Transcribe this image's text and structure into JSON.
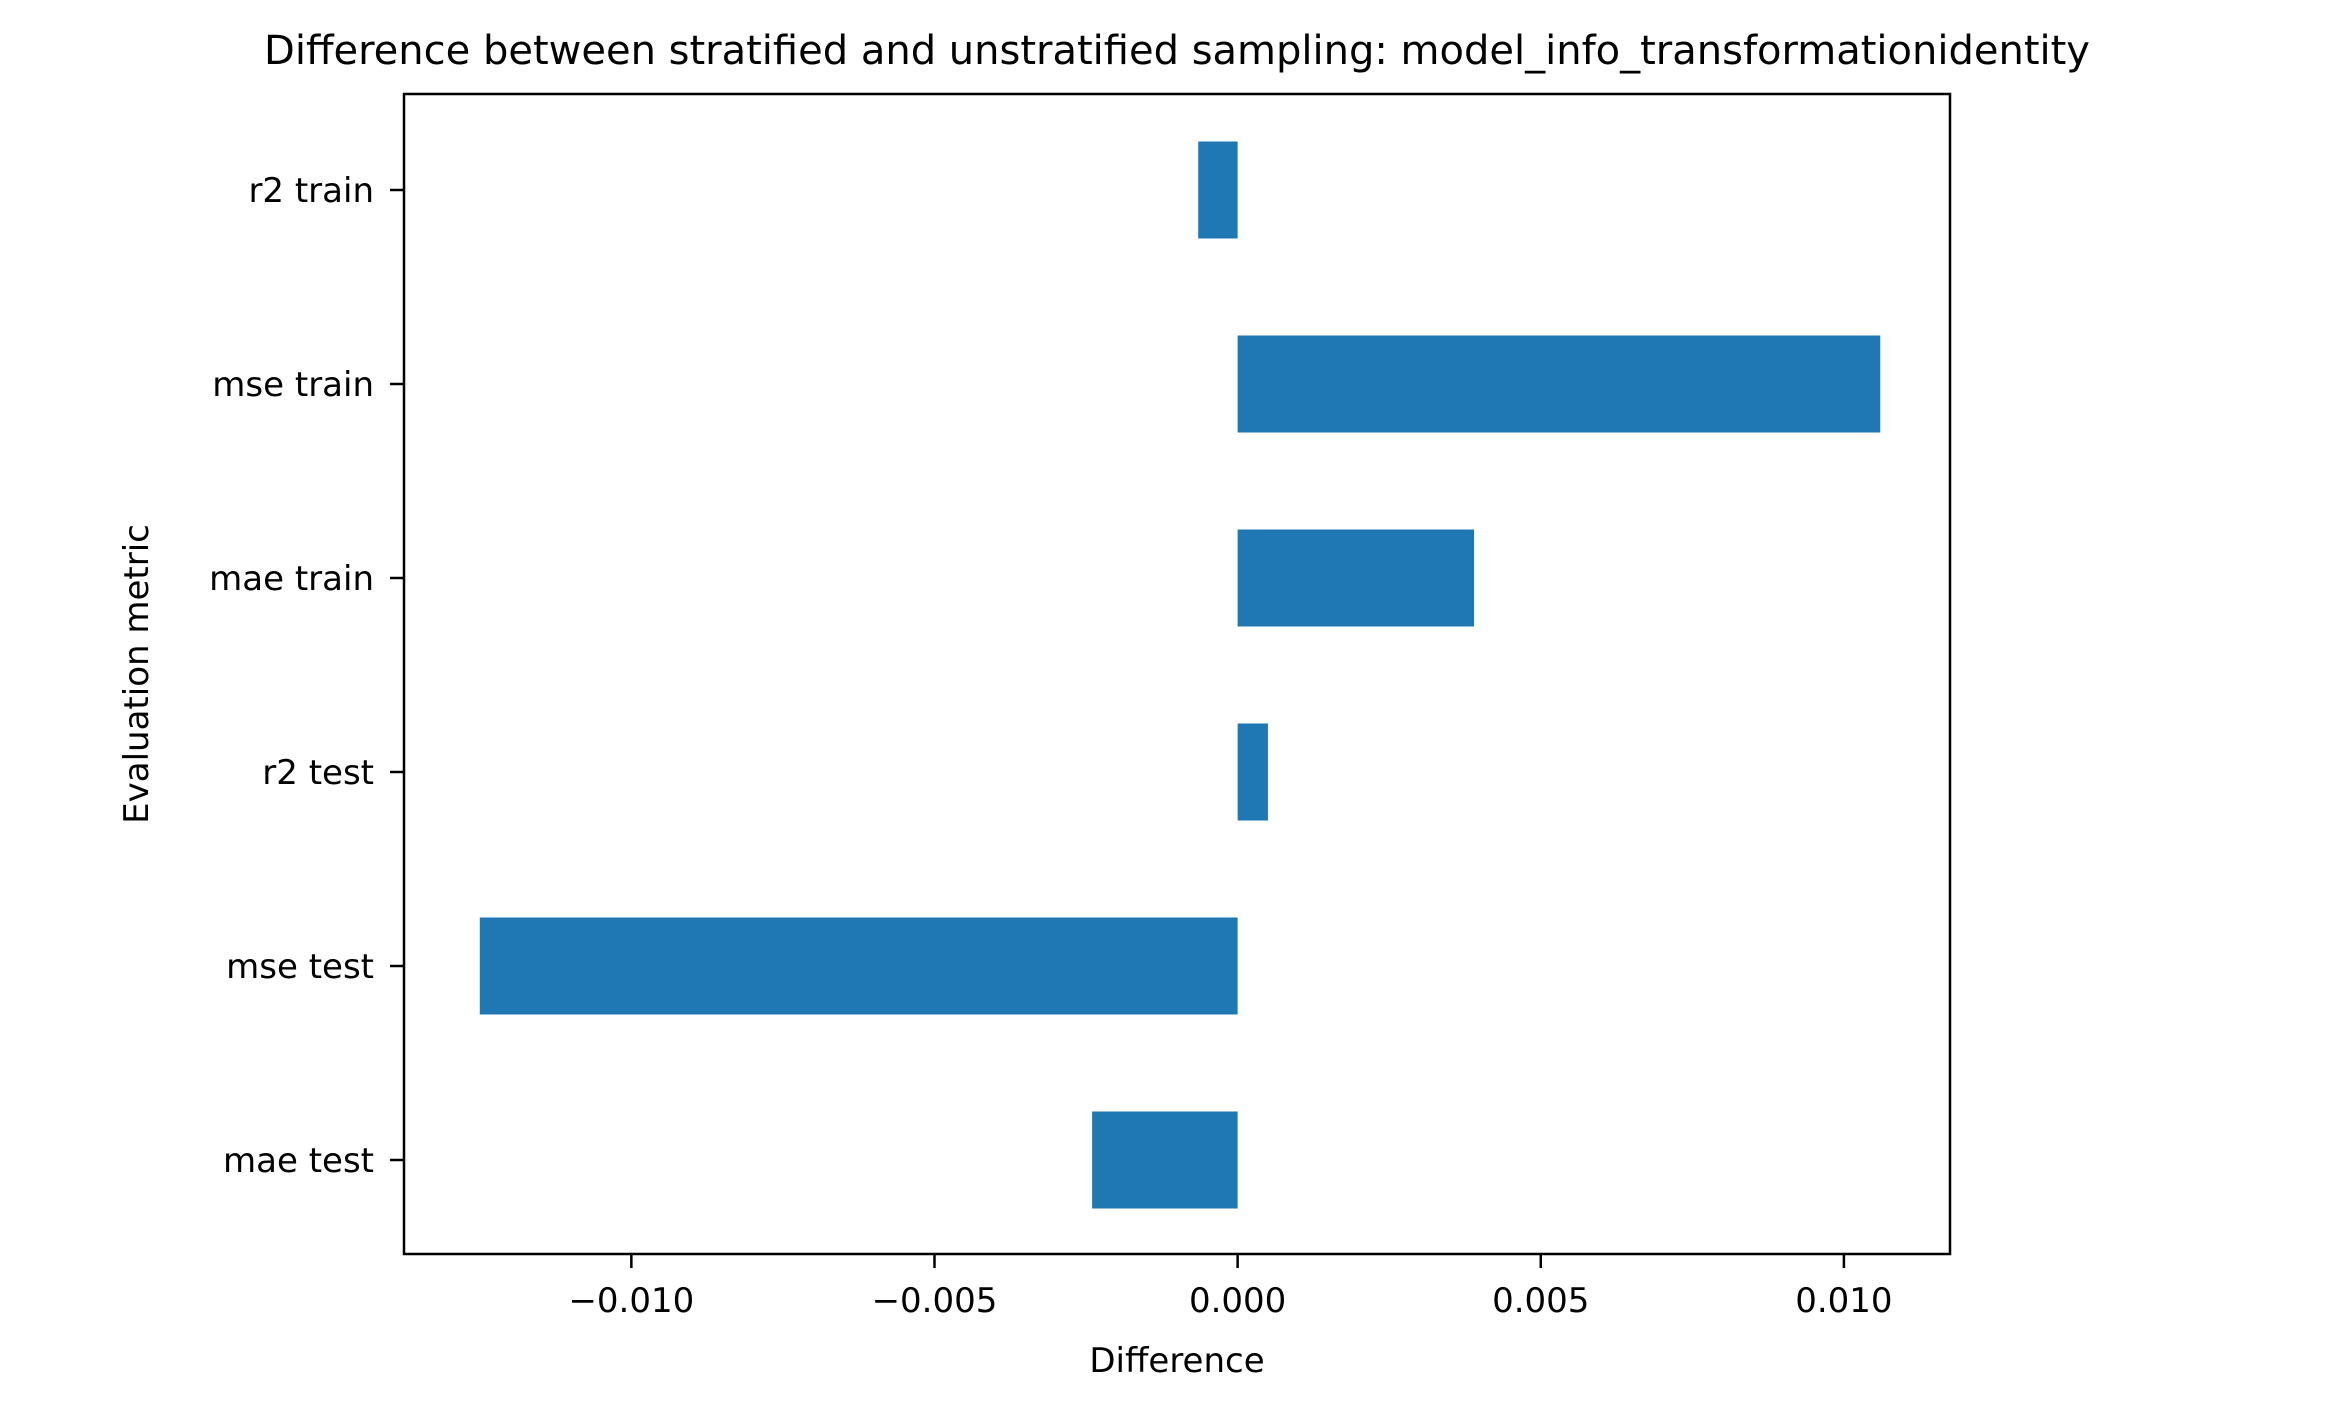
{
  "chart_data": {
    "type": "bar",
    "orientation": "horizontal",
    "title": "Difference between stratified and unstratified sampling: model_info_transformationidentity",
    "xlabel": "Difference",
    "ylabel": "Evaluation metric",
    "categories": [
      "mae test",
      "mse test",
      "r2 test",
      "mae train",
      "mse train",
      "r2 train"
    ],
    "values": [
      -0.0024,
      -0.0125,
      0.0005,
      0.0039,
      0.0106,
      -0.00065
    ],
    "xlim": [
      -0.01375,
      0.01175
    ],
    "xticks": [
      -0.01,
      -0.005,
      0.0,
      0.005,
      0.01
    ],
    "xtick_labels": [
      "−0.010",
      "−0.005",
      "0.000",
      "0.005",
      "0.010"
    ],
    "bar_color": "#1f77b4",
    "grid": false,
    "legend": false
  }
}
